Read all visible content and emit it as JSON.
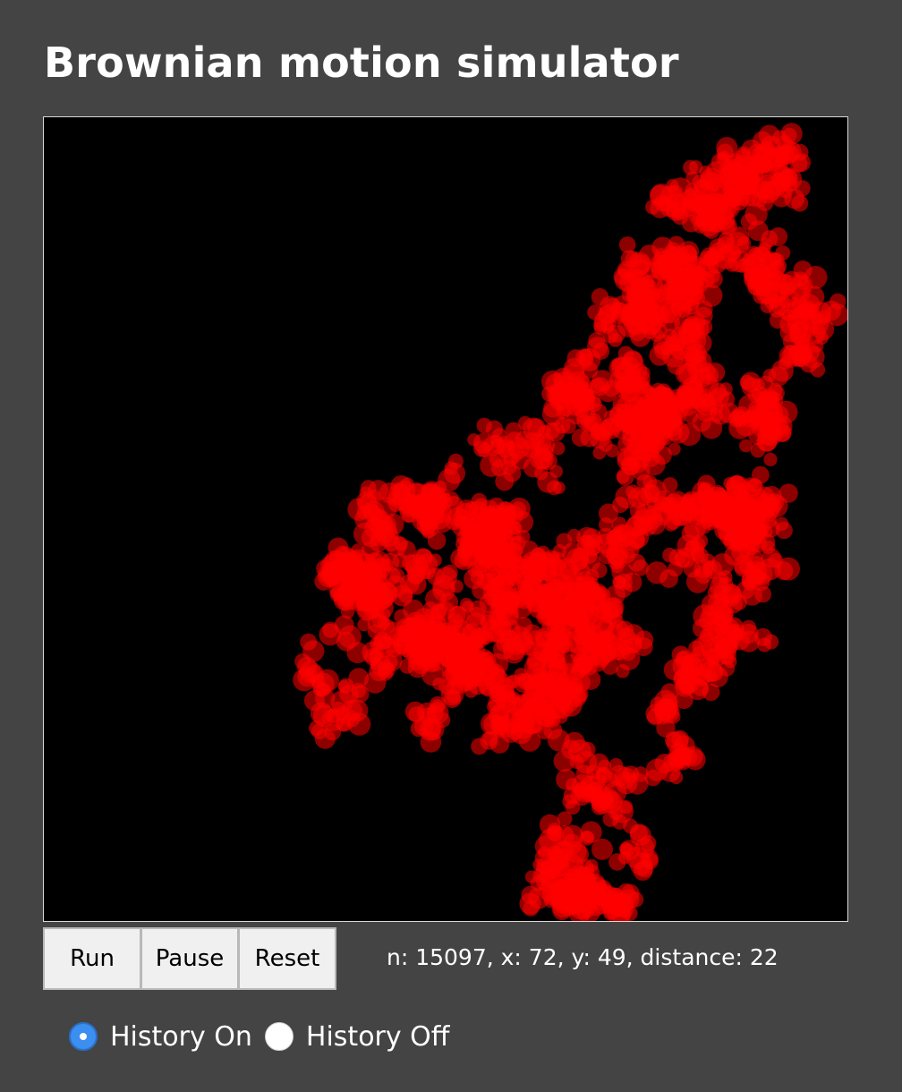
{
  "page": {
    "title": "Brownian motion simulator"
  },
  "canvas": {
    "background": "#000000",
    "trail_color": "#ff0000"
  },
  "controls": {
    "run_label": "Run",
    "pause_label": "Pause",
    "reset_label": "Reset"
  },
  "status": {
    "text": "n: 15097, x: 72, y: 49, distance: 22"
  },
  "history": {
    "on_label": "History On",
    "off_label": "History Off",
    "selected": "on"
  },
  "colors": {
    "background": "#444444",
    "radio_accent": "#3b8ff0"
  }
}
